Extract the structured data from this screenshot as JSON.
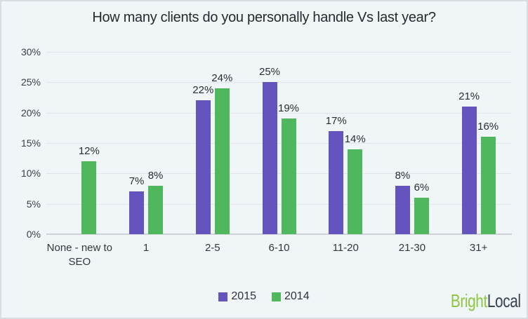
{
  "title": "How many clients do you personally handle Vs last year?",
  "logo": {
    "bright": "Bright",
    "local": "Local"
  },
  "colors": {
    "background": "#f0f5f8",
    "border": "#d9dde1",
    "gridline": "#e1e5e9",
    "axis_line": "#cdd2d6",
    "series_2015": "#6554be",
    "series_2014": "#50b85c",
    "logo_green": "#8dc63f",
    "logo_dark": "#3a424e"
  },
  "chart_data": {
    "type": "bar",
    "title": "How many clients do you personally handle Vs last year?",
    "categories": [
      "None - new to SEO",
      "1",
      "2-5",
      "6-10",
      "11-20",
      "21-30",
      "31+"
    ],
    "series": [
      {
        "name": "2015",
        "color": "#6554be",
        "values": [
          null,
          7,
          22,
          25,
          17,
          8,
          21
        ]
      },
      {
        "name": "2014",
        "color": "#50b85c",
        "values": [
          12,
          8,
          24,
          19,
          14,
          6,
          16
        ]
      }
    ],
    "value_suffix": "%",
    "ylim": [
      0,
      30
    ],
    "ytick_step": 5,
    "ytick_labels": [
      "0%",
      "5%",
      "10%",
      "15%",
      "20%",
      "25%",
      "30%"
    ],
    "grid": "horizontal",
    "data_labels": true,
    "legend_position": "bottom"
  }
}
